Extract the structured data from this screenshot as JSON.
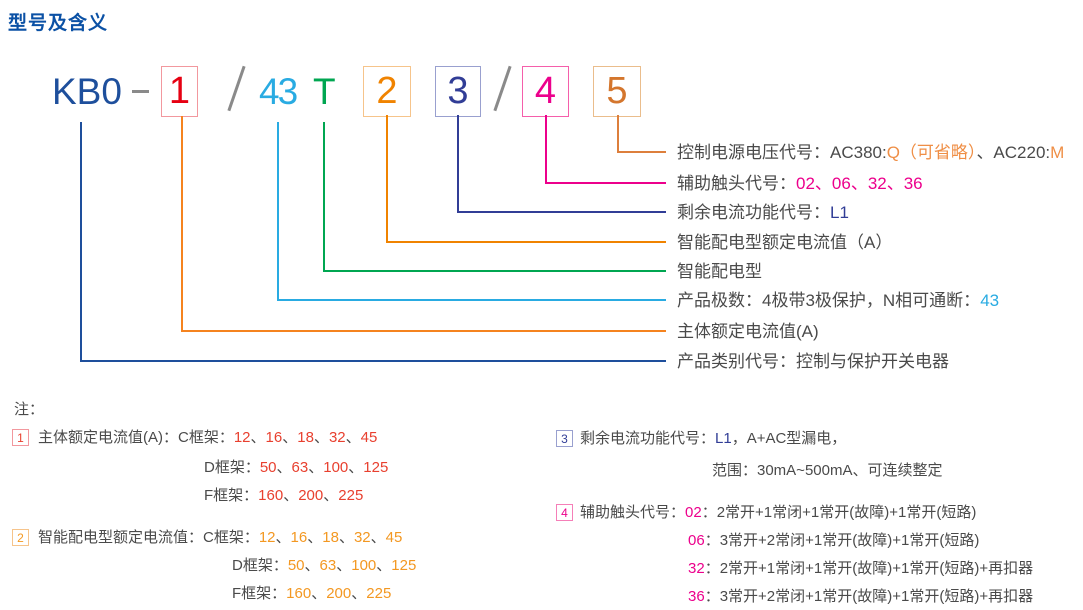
{
  "title": "型号及含义",
  "palette": {
    "title_blue": "#0b51a5",
    "model_blue": "#1e4f9c",
    "gray": "#8a8a8a",
    "red": "#e60012",
    "red_soft": "#e8402f",
    "orange": "#f08300",
    "orange_soft": "#f39822",
    "amber": "#ef8e45",
    "brown_orange": "#d4762d",
    "cyan": "#29abe2",
    "green": "#00a651",
    "navy": "#313d96",
    "magenta": "#ec008c",
    "text_dark": "#4a4a4a"
  },
  "formula": {
    "model": "KB0",
    "dash": "-",
    "slash": "/",
    "pole_code": "43",
    "type_code": "T",
    "codes": [
      "1",
      "2",
      "3",
      "4",
      "5"
    ]
  },
  "labels": [
    {
      "name": "control-voltage",
      "linked_to": "5",
      "segments": [
        {
          "t": "控制电源电压代号：AC380:",
          "c": "d"
        },
        {
          "t": "Q（可省略）",
          "c": "q"
        },
        {
          "t": "、AC220:",
          "c": "d"
        },
        {
          "t": "M",
          "c": "q"
        }
      ]
    },
    {
      "name": "aux-contact",
      "linked_to": "4",
      "segments": [
        {
          "t": "辅助触头代号：",
          "c": "d"
        },
        {
          "t": "02、06、32、36",
          "c": "m"
        }
      ]
    },
    {
      "name": "residual-current",
      "linked_to": "3",
      "segments": [
        {
          "t": "剩余电流功能代号：",
          "c": "d"
        },
        {
          "t": "L1",
          "c": "n"
        }
      ]
    },
    {
      "name": "smart-rated-current",
      "linked_to": "2",
      "segments": [
        {
          "t": "智能配电型额定电流值（A）",
          "c": "d"
        }
      ]
    },
    {
      "name": "smart-type",
      "linked_to": "T",
      "segments": [
        {
          "t": "智能配电型",
          "c": "d"
        }
      ]
    },
    {
      "name": "poles",
      "linked_to": "43",
      "segments": [
        {
          "t": "产品极数：4极带3极保护，N相可通断：",
          "c": "d"
        },
        {
          "t": "43",
          "c": "c"
        }
      ]
    },
    {
      "name": "main-rated-current",
      "linked_to": "1",
      "segments": [
        {
          "t": "主体额定电流值(A)",
          "c": "d"
        }
      ]
    },
    {
      "name": "category",
      "linked_to": "KB0",
      "segments": [
        {
          "t": "产品类别代号：控制与保护开关电器",
          "c": "d"
        }
      ]
    }
  ],
  "notes": {
    "heading": "注：",
    "items": [
      {
        "marker": "1",
        "lines": [
          [
            {
              "t": "主体额定电流值(A)：C框架：",
              "c": "d"
            },
            {
              "t": "12",
              "c": "r"
            },
            {
              "t": "、",
              "c": "d"
            },
            {
              "t": "16",
              "c": "r"
            },
            {
              "t": "、",
              "c": "d"
            },
            {
              "t": "18",
              "c": "r"
            },
            {
              "t": "、",
              "c": "d"
            },
            {
              "t": "32",
              "c": "r"
            },
            {
              "t": "、",
              "c": "d"
            },
            {
              "t": "45",
              "c": "r"
            }
          ],
          [
            {
              "t": "D框架：",
              "c": "d"
            },
            {
              "t": "50",
              "c": "r"
            },
            {
              "t": "、",
              "c": "d"
            },
            {
              "t": "63",
              "c": "r"
            },
            {
              "t": "、",
              "c": "d"
            },
            {
              "t": "100",
              "c": "r"
            },
            {
              "t": "、",
              "c": "d"
            },
            {
              "t": "125",
              "c": "r"
            }
          ],
          [
            {
              "t": "F框架：",
              "c": "d"
            },
            {
              "t": "160",
              "c": "r"
            },
            {
              "t": "、",
              "c": "d"
            },
            {
              "t": "200",
              "c": "r"
            },
            {
              "t": "、",
              "c": "d"
            },
            {
              "t": "225",
              "c": "r"
            }
          ]
        ]
      },
      {
        "marker": "2",
        "lines": [
          [
            {
              "t": "智能配电型额定电流值：C框架：",
              "c": "d"
            },
            {
              "t": "12",
              "c": "o"
            },
            {
              "t": "、",
              "c": "d"
            },
            {
              "t": "16",
              "c": "o"
            },
            {
              "t": "、",
              "c": "d"
            },
            {
              "t": "18",
              "c": "o"
            },
            {
              "t": "、",
              "c": "d"
            },
            {
              "t": "32",
              "c": "o"
            },
            {
              "t": "、",
              "c": "d"
            },
            {
              "t": "45",
              "c": "o"
            }
          ],
          [
            {
              "t": "D框架：",
              "c": "d"
            },
            {
              "t": "50",
              "c": "o"
            },
            {
              "t": "、",
              "c": "d"
            },
            {
              "t": "63",
              "c": "o"
            },
            {
              "t": "、",
              "c": "d"
            },
            {
              "t": "100",
              "c": "o"
            },
            {
              "t": "、",
              "c": "d"
            },
            {
              "t": "125",
              "c": "o"
            }
          ],
          [
            {
              "t": "F框架：",
              "c": "d"
            },
            {
              "t": "160",
              "c": "o"
            },
            {
              "t": "、",
              "c": "d"
            },
            {
              "t": "200",
              "c": "o"
            },
            {
              "t": "、",
              "c": "d"
            },
            {
              "t": "225",
              "c": "o"
            }
          ]
        ]
      },
      {
        "marker": "3",
        "lines": [
          [
            {
              "t": "剩余电流功能代号：",
              "c": "d"
            },
            {
              "t": "L1",
              "c": "n"
            },
            {
              "t": "，A+AC型漏电，",
              "c": "d"
            }
          ],
          [
            {
              "t": "范围：30mA~500mA、可连续整定",
              "c": "d"
            }
          ]
        ]
      },
      {
        "marker": "4",
        "lines": [
          [
            {
              "t": "辅助触头代号：",
              "c": "d"
            },
            {
              "t": "02",
              "c": "m"
            },
            {
              "t": "：2常开+1常闭+1常开(故障)+1常开(短路)",
              "c": "d"
            }
          ],
          [
            {
              "t": "06",
              "c": "m"
            },
            {
              "t": "：3常开+2常闭+1常开(故障)+1常开(短路)",
              "c": "d"
            }
          ],
          [
            {
              "t": "32",
              "c": "m"
            },
            {
              "t": "：2常开+1常闭+1常开(故障)+1常开(短路)+再扣器",
              "c": "d"
            }
          ],
          [
            {
              "t": "36",
              "c": "m"
            },
            {
              "t": "：3常开+2常闭+1常开(故障)+1常开(短路)+再扣器",
              "c": "d"
            }
          ]
        ]
      }
    ]
  }
}
